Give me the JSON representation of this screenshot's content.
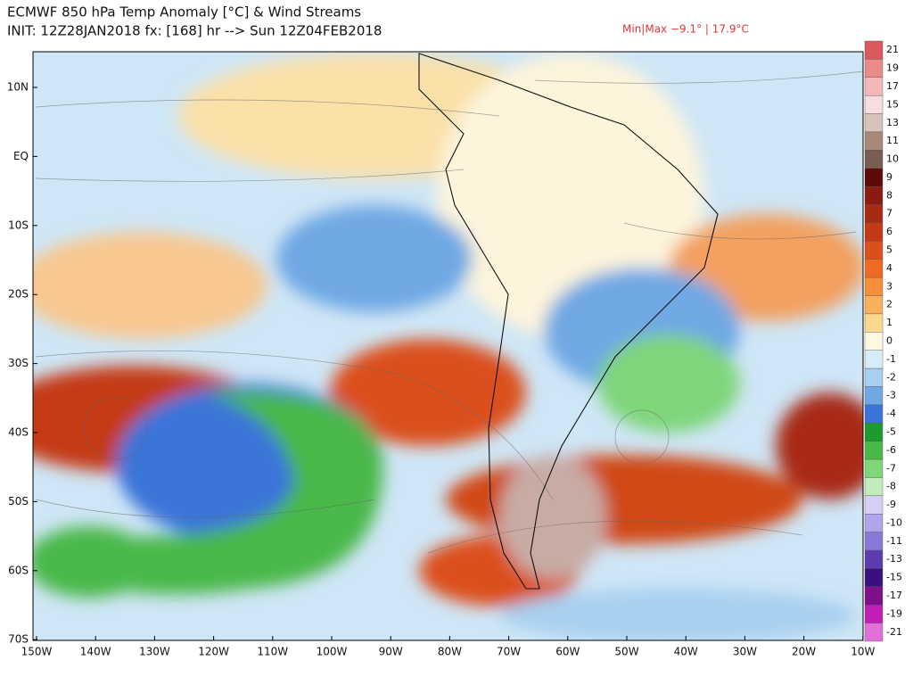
{
  "header": {
    "title": "ECMWF 850 hPa Temp Anomaly [°C] & Wind Streams",
    "subtitle": "INIT: 12Z28JAN2018 fx: [168] hr --> Sun 12Z04FEB2018",
    "minmax": "Min|Max −9.1° | 17.9°C"
  },
  "map": {
    "lat_labels": [
      "10N",
      "EQ",
      "10S",
      "20S",
      "30S",
      "40S",
      "50S",
      "60S",
      "70S"
    ],
    "lon_labels": [
      "150W",
      "140W",
      "130W",
      "120W",
      "110W",
      "100W",
      "90W",
      "80W",
      "70W",
      "60W",
      "50W",
      "40W",
      "30W",
      "20W",
      "10W"
    ]
  },
  "colorbar": {
    "labels": [
      21,
      19,
      17,
      15,
      13,
      11,
      10,
      9,
      8,
      7,
      6,
      5,
      4,
      3,
      2,
      1,
      0,
      -1,
      -2,
      -3,
      -4,
      -5,
      -6,
      -7,
      -8,
      -9,
      -10,
      -11,
      -13,
      -15,
      -17,
      -19,
      -21
    ],
    "colors": [
      "#d9595c",
      "#eb8a8a",
      "#f4b8b8",
      "#f6dede",
      "#d8c2bc",
      "#a88878",
      "#7a5c50",
      "#5c0a0a",
      "#8b1a10",
      "#a82a14",
      "#c43a18",
      "#db4f1c",
      "#ec6a24",
      "#f58f3a",
      "#f8b05a",
      "#fbd88c",
      "#fdf8e0",
      "#d6ecf8",
      "#a8d0f0",
      "#6fa8e4",
      "#3a74d8",
      "#1e9a30",
      "#48b848",
      "#7fd67a",
      "#c0ecbc",
      "#d8d0f4",
      "#b0a4ea",
      "#8a78d8",
      "#5c3cb0",
      "#3a1080",
      "#80108a",
      "#c020b8",
      "#e070d8"
    ]
  }
}
